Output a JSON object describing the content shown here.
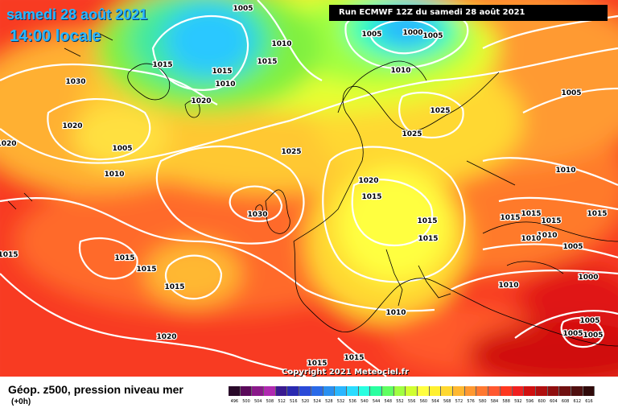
{
  "header": {
    "date": "samedi 28 août 2021",
    "time": "14:00 locale",
    "run": "Run ECMWF 12Z du samedi 28 août 2021"
  },
  "copyright": "Copyright 2021 Meteociel.fr",
  "footer": {
    "title": "Géop. z500, pression niveau mer",
    "subtitle": "(+0h)"
  },
  "legend": {
    "values": [
      "496",
      "500",
      "504",
      "508",
      "512",
      "516",
      "520",
      "524",
      "528",
      "532",
      "536",
      "540",
      "544",
      "548",
      "552",
      "556",
      "560",
      "564",
      "568",
      "572",
      "576",
      "580",
      "584",
      "588",
      "592",
      "596",
      "600",
      "604",
      "608",
      "612",
      "616"
    ],
    "colors": [
      "#2a0a2a",
      "#5a0a5a",
      "#8a1a8a",
      "#b02ab0",
      "#3a1a90",
      "#2a2ab0",
      "#2a4ad8",
      "#2a6ae8",
      "#2a90f0",
      "#2ab6ff",
      "#2adcff",
      "#2affe0",
      "#2affa0",
      "#60ff60",
      "#a0ff40",
      "#d0ff30",
      "#ffff40",
      "#fff030",
      "#ffd830",
      "#ffb830",
      "#ff9830",
      "#ff7830",
      "#ff5830",
      "#ff3820",
      "#f02020",
      "#d01010",
      "#b01010",
      "#901010",
      "#701010",
      "#501010",
      "#300a0a"
    ]
  },
  "isobars": [
    {
      "label": "1005",
      "pos": [
        302,
        10
      ]
    },
    {
      "label": "1005",
      "pos": [
        462,
        42
      ]
    },
    {
      "label": "1000",
      "pos": [
        513,
        40
      ]
    },
    {
      "label": "1005",
      "pos": [
        538,
        44
      ]
    },
    {
      "label": "1010",
      "pos": [
        350,
        54
      ]
    },
    {
      "label": "1015",
      "pos": [
        202,
        80
      ]
    },
    {
      "label": "1015",
      "pos": [
        276,
        88
      ]
    },
    {
      "label": "1010",
      "pos": [
        280,
        104
      ]
    },
    {
      "label": "1015",
      "pos": [
        332,
        76
      ]
    },
    {
      "label": "1030",
      "pos": [
        94,
        101
      ]
    },
    {
      "label": "1020",
      "pos": [
        250,
        125
      ]
    },
    {
      "label": "1010",
      "pos": [
        498,
        87
      ]
    },
    {
      "label": "1005",
      "pos": [
        710,
        115
      ]
    },
    {
      "label": "1025",
      "pos": [
        547,
        137
      ]
    },
    {
      "label": "1020",
      "pos": [
        90,
        156
      ]
    },
    {
      "label": "1005",
      "pos": [
        152,
        184
      ]
    },
    {
      "label": "1025",
      "pos": [
        362,
        188
      ]
    },
    {
      "label": "1025",
      "pos": [
        512,
        166
      ]
    },
    {
      "label": "1010",
      "pos": [
        142,
        216
      ]
    },
    {
      "label": "1010",
      "pos": [
        703,
        211
      ]
    },
    {
      "label": "1020",
      "pos": [
        8,
        178
      ]
    },
    {
      "label": "1020",
      "pos": [
        458,
        224
      ]
    },
    {
      "label": "1015",
      "pos": [
        462,
        244
      ]
    },
    {
      "label": "1030",
      "pos": [
        320,
        266
      ]
    },
    {
      "label": "1015",
      "pos": [
        531,
        274
      ]
    },
    {
      "label": "1015",
      "pos": [
        634,
        270
      ]
    },
    {
      "label": "1015",
      "pos": [
        660,
        265
      ]
    },
    {
      "label": "1015",
      "pos": [
        685,
        274
      ]
    },
    {
      "label": "1015",
      "pos": [
        742,
        265
      ]
    },
    {
      "label": "1010",
      "pos": [
        680,
        292
      ]
    },
    {
      "label": "1010",
      "pos": [
        660,
        296
      ]
    },
    {
      "label": "1015",
      "pos": [
        532,
        296
      ]
    },
    {
      "label": "1005",
      "pos": [
        712,
        306
      ]
    },
    {
      "label": "1015",
      "pos": [
        10,
        316
      ]
    },
    {
      "label": "1015",
      "pos": [
        155,
        320
      ]
    },
    {
      "label": "1015",
      "pos": [
        182,
        334
      ]
    },
    {
      "label": "1015",
      "pos": [
        217,
        356
      ]
    },
    {
      "label": "1010",
      "pos": [
        632,
        354
      ]
    },
    {
      "label": "1000",
      "pos": [
        731,
        344
      ]
    },
    {
      "label": "1010",
      "pos": [
        492,
        388
      ]
    },
    {
      "label": "1005",
      "pos": [
        733,
        398
      ]
    },
    {
      "label": "1005",
      "pos": [
        712,
        414
      ]
    },
    {
      "label": "1005",
      "pos": [
        737,
        416
      ]
    },
    {
      "label": "1020",
      "pos": [
        207,
        418
      ]
    },
    {
      "label": "1015",
      "pos": [
        440,
        444
      ]
    },
    {
      "label": "1015",
      "pos": [
        394,
        451
      ]
    }
  ]
}
